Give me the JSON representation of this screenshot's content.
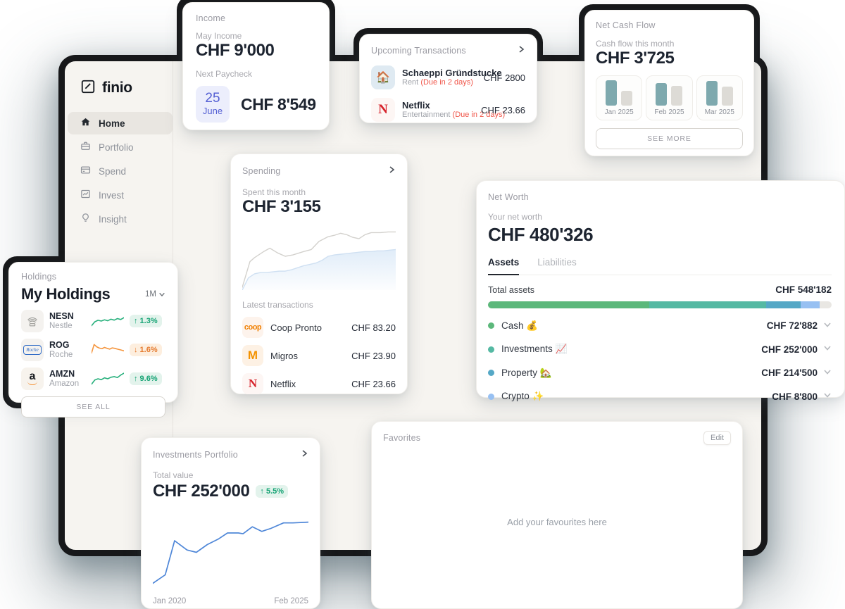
{
  "sidebar": {
    "logo": "finio",
    "items": [
      {
        "label": "Home",
        "active": true
      },
      {
        "label": "Portfolio"
      },
      {
        "label": "Spend"
      },
      {
        "label": "Invest"
      },
      {
        "label": "Insight"
      }
    ]
  },
  "income": {
    "title": "Income",
    "period_label": "May Income",
    "amount": "CHF 9'000",
    "paycheck_label": "Next Paycheck",
    "date_day": "25",
    "date_month": "June",
    "paycheck_amount": "CHF 8'549"
  },
  "upcoming": {
    "title": "Upcoming Transactions",
    "rows": [
      {
        "icon": "🏠",
        "name": "Schaeppi Gründstucke",
        "category": "Rent",
        "due": "(Due in 2 days)",
        "amount": "CHF 2800"
      },
      {
        "logo_letter": "N",
        "name": "Netflix",
        "category": "Entertainment",
        "due": "(Due in 2 days)",
        "amount": "CHF 23.66"
      }
    ]
  },
  "netcash": {
    "title": "Net Cash Flow",
    "label": "Cash flow this month",
    "amount": "CHF 3'725",
    "months": [
      {
        "label": "Jan 2025"
      },
      {
        "label": "Feb 2025"
      },
      {
        "label": "Mar 2025"
      }
    ],
    "see_more": "SEE MORE"
  },
  "spending": {
    "title": "Spending",
    "label": "Spent this month",
    "amount": "CHF 3'155",
    "latest_label": "Latest transactions",
    "rows": [
      {
        "logo": "coop",
        "name": "Coop Pronto",
        "amount": "CHF 83.20"
      },
      {
        "logo": "M",
        "name": "Migros",
        "amount": "CHF 23.90"
      },
      {
        "logo": "N",
        "name": "Netflix",
        "amount": "CHF 23.66"
      }
    ]
  },
  "networth": {
    "title": "Net Worth",
    "label": "Your net worth",
    "amount": "CHF 480'326",
    "tabs": [
      {
        "label": "Assets",
        "active": true
      },
      {
        "label": "Liabilities"
      }
    ],
    "total_label": "Total assets",
    "total_amount": "CHF 548'182",
    "assets": [
      {
        "name": "Cash",
        "emoji": "💰",
        "amount": "CHF 72'882",
        "dot_color": "#5cb87b"
      },
      {
        "name": "Investments",
        "emoji": "📈",
        "amount": "CHF 252'000",
        "dot_color": "#55b9a3"
      },
      {
        "name": "Property",
        "emoji": "🏡",
        "amount": "CHF 214'500",
        "dot_color": "#55a8c6"
      },
      {
        "name": "Crypto",
        "emoji": "✨",
        "amount": "CHF 8'800",
        "dot_color": "#97c0f2"
      }
    ]
  },
  "holdings": {
    "title": "Holdings",
    "heading": "My Holdings",
    "range": "1M",
    "rows": [
      {
        "ticker": "NESN",
        "company": "Nestle",
        "change": "↑ 1.3%",
        "direction": "up"
      },
      {
        "ticker": "ROG",
        "company": "Roche",
        "change": "↓ 1.6%",
        "direction": "down"
      },
      {
        "ticker": "AMZN",
        "company": "Amazon",
        "change": "↑ 9.6%",
        "direction": "up"
      }
    ],
    "see_all": "SEE ALL",
    "logos": {
      "roche_text": "Roche",
      "amazon_letter": "a"
    }
  },
  "investments": {
    "title": "Investments Portfolio",
    "label": "Total value",
    "amount": "CHF 252'000",
    "change": "↑ 5.5%"
  },
  "favorites": {
    "title": "Favorites",
    "edit_label": "Edit",
    "empty_text": "Add your favourites here"
  },
  "chart_data": [
    {
      "type": "line",
      "name": "spending-previous-month",
      "color": "#d3d1cd",
      "width": 1.4,
      "points": [
        [
          0,
          4
        ],
        [
          5,
          42
        ],
        [
          8,
          48
        ],
        [
          14,
          57
        ],
        [
          18,
          62
        ],
        [
          23,
          55
        ],
        [
          28,
          50
        ],
        [
          33,
          52
        ],
        [
          40,
          57
        ],
        [
          45,
          60
        ],
        [
          50,
          72
        ],
        [
          56,
          79
        ],
        [
          60,
          81
        ],
        [
          64,
          84
        ],
        [
          68,
          82
        ],
        [
          72,
          78
        ],
        [
          76,
          76
        ],
        [
          80,
          82
        ],
        [
          84,
          85
        ],
        [
          90,
          85
        ],
        [
          95,
          86
        ],
        [
          100,
          86
        ]
      ]
    },
    {
      "type": "area",
      "name": "spending-current-month",
      "color": "#cfe0f2",
      "width": 1.4,
      "fill": true,
      "fillColor": "url(#spendGrad)",
      "points": [
        [
          0,
          0
        ],
        [
          4,
          18
        ],
        [
          8,
          24
        ],
        [
          12,
          26
        ],
        [
          16,
          26
        ],
        [
          20,
          27
        ],
        [
          24,
          28
        ],
        [
          28,
          28
        ],
        [
          32,
          30
        ],
        [
          36,
          33
        ],
        [
          40,
          36
        ],
        [
          44,
          38
        ],
        [
          48,
          40
        ],
        [
          52,
          44
        ],
        [
          56,
          50
        ],
        [
          60,
          52
        ],
        [
          64,
          53
        ],
        [
          68,
          54
        ],
        [
          72,
          55
        ],
        [
          76,
          56
        ],
        [
          80,
          57
        ],
        [
          84,
          57
        ],
        [
          88,
          58
        ],
        [
          92,
          58
        ],
        [
          96,
          59
        ],
        [
          100,
          60
        ]
      ]
    },
    {
      "type": "bar",
      "name": "net-cash-flow-by-month",
      "categories": [
        "Jan 2025",
        "Feb 2025",
        "Mar 2025"
      ],
      "series": [
        {
          "name": "inflow",
          "color": "#7ea9ae",
          "values": [
            100,
            89,
            97
          ]
        },
        {
          "name": "outflow",
          "color": "#dddbd6",
          "values": [
            57,
            77,
            74
          ]
        }
      ]
    },
    {
      "type": "bar",
      "name": "net-worth-allocation",
      "style": "stacked-progress",
      "total_label": "CHF 548'182",
      "segments": [
        {
          "name": "segment-1",
          "color": "#5cb87b",
          "pct": 47
        },
        {
          "name": "segment-2",
          "color": "#55b9a3",
          "pct": 34
        },
        {
          "name": "segment-3",
          "color": "#55a8c6",
          "pct": 10
        },
        {
          "name": "segment-4",
          "color": "#97c0f2",
          "pct": 5.5
        }
      ]
    },
    {
      "type": "line",
      "name": "holdings-sparklines",
      "series": [
        {
          "name": "NESN",
          "color": "#27b07c",
          "width": 1.6,
          "points": [
            [
              0,
              20
            ],
            [
              10,
              45
            ],
            [
              20,
              55
            ],
            [
              30,
              50
            ],
            [
              40,
              58
            ],
            [
              50,
              52
            ],
            [
              60,
              62
            ],
            [
              70,
              56
            ],
            [
              80,
              66
            ],
            [
              90,
              60
            ],
            [
              100,
              72
            ]
          ]
        },
        {
          "name": "ROG",
          "color": "#f5953d",
          "width": 1.6,
          "points": [
            [
              0,
              30
            ],
            [
              8,
              85
            ],
            [
              16,
              70
            ],
            [
              24,
              62
            ],
            [
              32,
              58
            ],
            [
              40,
              66
            ],
            [
              48,
              60
            ],
            [
              56,
              55
            ],
            [
              64,
              63
            ],
            [
              72,
              60
            ],
            [
              80,
              55
            ],
            [
              90,
              50
            ],
            [
              100,
              44
            ]
          ]
        },
        {
          "name": "AMZN",
          "color": "#27b07c",
          "width": 1.6,
          "points": [
            [
              0,
              15
            ],
            [
              10,
              42
            ],
            [
              20,
              50
            ],
            [
              30,
              44
            ],
            [
              40,
              56
            ],
            [
              50,
              50
            ],
            [
              60,
              60
            ],
            [
              70,
              64
            ],
            [
              80,
              58
            ],
            [
              90,
              74
            ],
            [
              100,
              86
            ]
          ]
        }
      ]
    },
    {
      "type": "line",
      "name": "investments-portfolio-value",
      "color": "#4f87d8",
      "width": 1.7,
      "x_range": [
        "Jan 2020",
        "Feb 2025"
      ],
      "points": [
        [
          0,
          5
        ],
        [
          8,
          16
        ],
        [
          14,
          60
        ],
        [
          22,
          48
        ],
        [
          28,
          45
        ],
        [
          35,
          55
        ],
        [
          42,
          62
        ],
        [
          48,
          70
        ],
        [
          55,
          70
        ],
        [
          58,
          69
        ],
        [
          64,
          78
        ],
        [
          70,
          72
        ],
        [
          76,
          76
        ],
        [
          84,
          83
        ],
        [
          90,
          83
        ],
        [
          100,
          84
        ]
      ]
    }
  ]
}
